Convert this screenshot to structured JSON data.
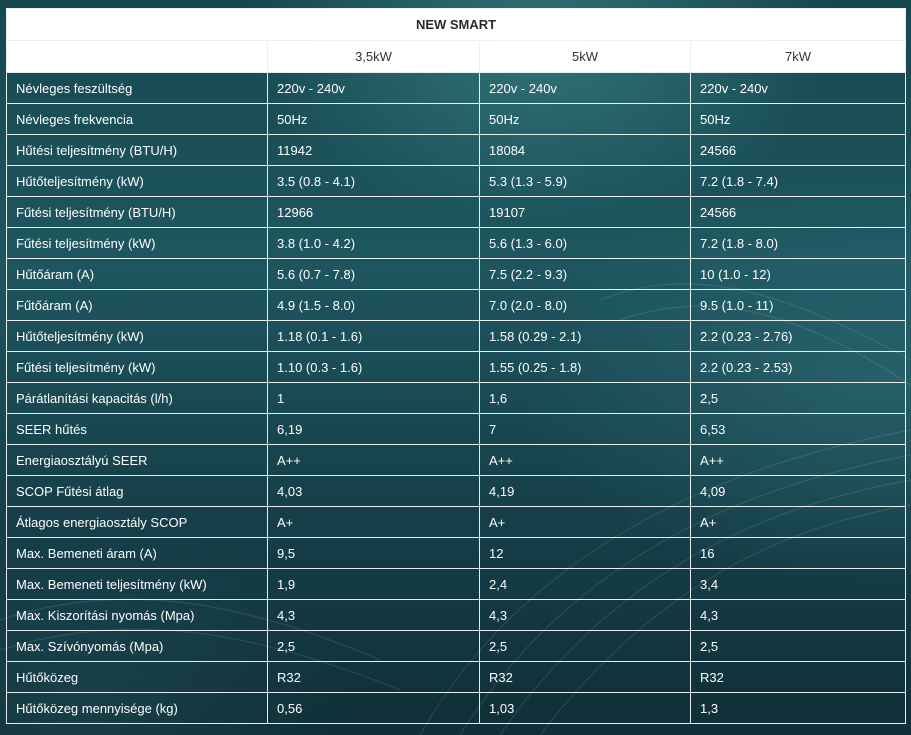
{
  "table": {
    "title": "NEW SMART",
    "corner": "",
    "columns": [
      "3,5kW",
      "5kW",
      "7kW"
    ],
    "rows": [
      {
        "label": "Névleges feszültség",
        "values": [
          "220v - 240v",
          "220v - 240v",
          "220v - 240v"
        ]
      },
      {
        "label": "Névleges frekvencia",
        "values": [
          "50Hz",
          "50Hz",
          "50Hz"
        ]
      },
      {
        "label": "Hűtési teljesítmény (BTU/H)",
        "values": [
          "11942",
          "18084",
          "24566"
        ]
      },
      {
        "label": "Hűtőteljesítmény (kW)",
        "values": [
          "3.5 (0.8 - 4.1)",
          "5.3 (1.3 - 5.9)",
          "7.2 (1.8 - 7.4)"
        ]
      },
      {
        "label": "Fűtési teljesítmény (BTU/H)",
        "values": [
          "12966",
          "19107",
          "24566"
        ]
      },
      {
        "label": "Fűtési teljesítmény (kW)",
        "values": [
          "3.8 (1.0 - 4.2)",
          "5.6 (1.3 - 6.0)",
          "7.2 (1.8 - 8.0)"
        ]
      },
      {
        "label": "Hűtőáram (A)",
        "values": [
          "5.6 (0.7 - 7.8)",
          "7.5 (2.2 - 9.3)",
          "10 (1.0 - 12)"
        ]
      },
      {
        "label": "Fűtőáram (A)",
        "values": [
          "4.9 (1.5 - 8.0)",
          "7.0 (2.0 - 8.0)",
          "9.5 (1.0 - 11)"
        ]
      },
      {
        "label": "Hűtőteljesítmény (kW)",
        "values": [
          "1.18 (0.1 - 1.6)",
          "1.58 (0.29 - 2.1)",
          "2.2 (0.23 - 2.76)"
        ]
      },
      {
        "label": "Fűtési teljesítmény (kW)",
        "values": [
          "1.10 (0.3 - 1.6)",
          "1.55 (0.25 - 1.8)",
          "2.2 (0.23 - 2.53)"
        ]
      },
      {
        "label": "Párátlanítási kapacitás (l/h)",
        "values": [
          "1",
          "1,6",
          "2,5"
        ]
      },
      {
        "label": "SEER hűtés",
        "values": [
          "6,19",
          "7",
          "6,53"
        ]
      },
      {
        "label": "Energiaosztályú SEER",
        "values": [
          "A++",
          "A++",
          "A++"
        ]
      },
      {
        "label": "SCOP Fűtési átlag",
        "values": [
          "4,03",
          "4,19",
          "4,09"
        ]
      },
      {
        "label": "Átlagos energiaosztály SCOP",
        "values": [
          "A+",
          "A+",
          "A+"
        ]
      },
      {
        "label": "Max. Bemeneti áram (A)",
        "values": [
          "9,5",
          "12",
          "16"
        ]
      },
      {
        "label": "Max. Bemeneti teljesítmény (kW)",
        "values": [
          "1,9",
          "2,4",
          "3,4"
        ]
      },
      {
        "label": "Max. Kiszorítási nyomás (Mpa)",
        "values": [
          "4,3",
          "4,3",
          "4,3"
        ]
      },
      {
        "label": "Max. Szívónyomás (Mpa)",
        "values": [
          "2,5",
          "2,5",
          "2,5"
        ]
      },
      {
        "label": "Hűtőközeg",
        "values": [
          "R32",
          "R32",
          "R32"
        ]
      },
      {
        "label": "Hűtőközeg mennyisége (kg)",
        "values": [
          "0,56",
          "1,03",
          "1,3"
        ]
      }
    ]
  },
  "colors": {
    "header_bg": "#ffffff",
    "background": "#1e5660",
    "text": "#ffffff"
  }
}
